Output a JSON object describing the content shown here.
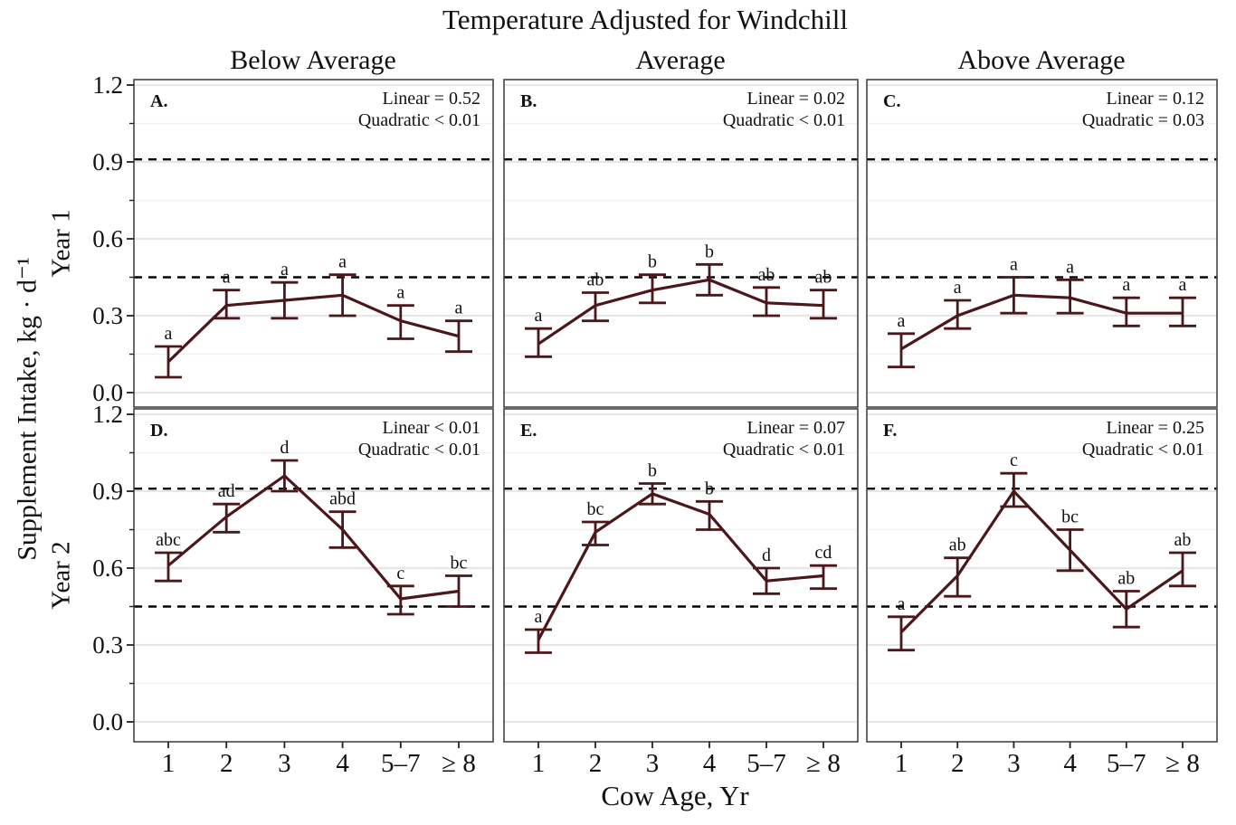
{
  "chart_data": {
    "type": "line",
    "title": "Temperature Adjusted for Windchill",
    "xlabel": "Cow Age, Yr",
    "ylabel": "Supplement Intake, kg · d⁻¹",
    "col_headers": [
      "Below Average",
      "Average",
      "Above Average"
    ],
    "row_headers": [
      "Year 1",
      "Year 2"
    ],
    "categories": [
      "1",
      "2",
      "3",
      "4",
      "5–7",
      "≥ 8"
    ],
    "y_tick_labels": [
      "0.0",
      "0.3",
      "0.6",
      "0.9",
      "1.2"
    ],
    "y_ticks": [
      0.0,
      0.3,
      0.6,
      0.9,
      1.2
    ],
    "y_minor_ticks": [
      0.15,
      0.45,
      0.75,
      1.05
    ],
    "ylim": [
      0.0,
      1.2
    ],
    "grid": true,
    "legend": "none",
    "reference_lines_dashed": [
      0.45,
      0.91
    ],
    "error_bars": "shown",
    "panels": [
      {
        "letter": "A.",
        "row": "Year 1",
        "col": "Below Average",
        "stats": [
          "Linear = 0.52",
          "Quadratic < 0.01"
        ],
        "means": [
          0.12,
          0.34,
          0.36,
          0.38,
          0.28,
          0.22
        ],
        "lower": [
          0.06,
          0.29,
          0.29,
          0.3,
          0.21,
          0.16
        ],
        "upper": [
          0.18,
          0.4,
          0.43,
          0.46,
          0.34,
          0.28
        ],
        "sig_letters": [
          "a",
          "a",
          "a",
          "a",
          "a",
          "a"
        ]
      },
      {
        "letter": "B.",
        "row": "Year 1",
        "col": "Average",
        "stats": [
          "Linear = 0.02",
          "Quadratic < 0.01"
        ],
        "means": [
          0.19,
          0.34,
          0.4,
          0.44,
          0.35,
          0.34
        ],
        "lower": [
          0.14,
          0.28,
          0.35,
          0.38,
          0.3,
          0.29
        ],
        "upper": [
          0.25,
          0.39,
          0.46,
          0.5,
          0.41,
          0.4
        ],
        "sig_letters": [
          "a",
          "ab",
          "b",
          "b",
          "ab",
          "ab"
        ]
      },
      {
        "letter": "C.",
        "row": "Year 1",
        "col": "Above Average",
        "stats": [
          "Linear = 0.12",
          "Quadratic = 0.03"
        ],
        "means": [
          0.17,
          0.3,
          0.38,
          0.37,
          0.31,
          0.31
        ],
        "lower": [
          0.1,
          0.25,
          0.31,
          0.31,
          0.26,
          0.26
        ],
        "upper": [
          0.23,
          0.36,
          0.45,
          0.44,
          0.37,
          0.37
        ],
        "sig_letters": [
          "a",
          "a",
          "a",
          "a",
          "a",
          "a"
        ]
      },
      {
        "letter": "D.",
        "row": "Year 2",
        "col": "Below Average",
        "stats": [
          "Linear < 0.01",
          "Quadratic < 0.01"
        ],
        "means": [
          0.61,
          0.8,
          0.96,
          0.75,
          0.48,
          0.51
        ],
        "lower": [
          0.55,
          0.74,
          0.9,
          0.68,
          0.42,
          0.45
        ],
        "upper": [
          0.66,
          0.85,
          1.02,
          0.82,
          0.53,
          0.57
        ],
        "sig_letters": [
          "abc",
          "ad",
          "d",
          "abd",
          "c",
          "bc"
        ]
      },
      {
        "letter": "E.",
        "row": "Year 2",
        "col": "Average",
        "stats": [
          "Linear = 0.07",
          "Quadratic < 0.01"
        ],
        "means": [
          0.32,
          0.74,
          0.89,
          0.81,
          0.55,
          0.57
        ],
        "lower": [
          0.27,
          0.69,
          0.85,
          0.75,
          0.5,
          0.52
        ],
        "upper": [
          0.36,
          0.78,
          0.93,
          0.86,
          0.6,
          0.61
        ],
        "sig_letters": [
          "a",
          "bc",
          "b",
          "b",
          "d",
          "cd"
        ]
      },
      {
        "letter": "F.",
        "row": "Year 2",
        "col": "Above Average",
        "stats": [
          "Linear = 0.25",
          "Quadratic < 0.01"
        ],
        "means": [
          0.35,
          0.57,
          0.9,
          0.67,
          0.44,
          0.59
        ],
        "lower": [
          0.28,
          0.49,
          0.84,
          0.59,
          0.37,
          0.53
        ],
        "upper": [
          0.41,
          0.64,
          0.97,
          0.75,
          0.51,
          0.66
        ],
        "sig_letters": [
          "a",
          "ab",
          "c",
          "bc",
          "ab",
          "ab"
        ]
      }
    ],
    "colors": {
      "line": "#4b171a",
      "reference_line": "#000000",
      "grid_major": "#e7e7e7",
      "grid_minor": "#f2f2f2",
      "panel_border": "#454545",
      "text": "#111111"
    }
  }
}
